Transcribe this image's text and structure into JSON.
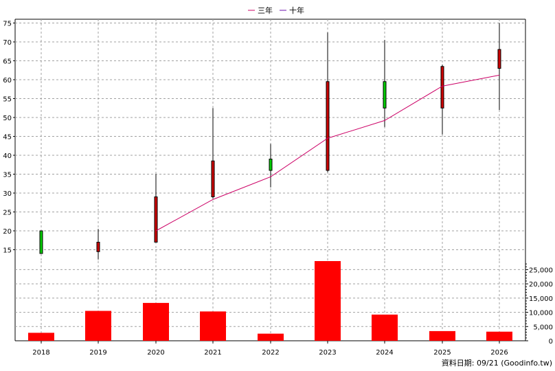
{
  "legend": {
    "three_year": "三年",
    "ten_year": "十年"
  },
  "footer": "資料日期: 09/21  (Goodinfo.tw)",
  "colors": {
    "ma_line": "#cc0066",
    "ten_year_line": "#6a0dad",
    "up_candle": "#00cc00",
    "down_candle": "#cc0000",
    "volume_bar": "#ff0000",
    "grid": "#a0a0a0"
  },
  "chart_data": [
    {
      "type": "candlestick",
      "years": [
        "2018",
        "2019",
        "2020",
        "2021",
        "2022",
        "2023",
        "2024",
        "2025",
        "2026"
      ],
      "candles": [
        {
          "open": 14.0,
          "close": 20.0,
          "high": 20.0,
          "low": 14.0
        },
        {
          "open": 17.0,
          "close": 14.5,
          "high": 20.5,
          "low": 12.5
        },
        {
          "open": 29.0,
          "close": 17.0,
          "high": 35.0,
          "low": 17.0
        },
        {
          "open": 38.5,
          "close": 29.0,
          "high": 52.5,
          "low": 28.5
        },
        {
          "open": 36.0,
          "close": 39.0,
          "high": 43.0,
          "low": 31.5
        },
        {
          "open": 59.5,
          "close": 36.0,
          "high": 72.5,
          "low": 35.5
        },
        {
          "open": 52.5,
          "close": 59.5,
          "high": 70.5,
          "low": 47.5
        },
        {
          "open": 63.5,
          "close": 52.5,
          "high": 64.0,
          "low": 45.5
        },
        {
          "open": 68.0,
          "close": 63.0,
          "high": 75.0,
          "low": 52.0
        }
      ],
      "three_year_ma": [
        null,
        null,
        20.0,
        28.3,
        34.3,
        44.5,
        49.2,
        58.3,
        61.2
      ],
      "yticks": [
        15,
        20,
        25,
        30,
        35,
        40,
        45,
        50,
        55,
        60,
        65,
        70,
        75
      ],
      "ylim": [
        12,
        76
      ]
    },
    {
      "type": "bar",
      "categories": [
        "2018",
        "2019",
        "2020",
        "2021",
        "2022",
        "2023",
        "2024",
        "2025",
        "2026"
      ],
      "values": [
        2800,
        10500,
        13300,
        10300,
        2500,
        28000,
        9200,
        3400,
        3200
      ],
      "yticks": [
        0,
        5000,
        10000,
        15000,
        20000,
        25000
      ],
      "ytick_labels": [
        "0",
        "5,000",
        "10,000",
        "15,000",
        "20,000",
        "25,000"
      ],
      "ylim": [
        0,
        28000
      ]
    }
  ]
}
